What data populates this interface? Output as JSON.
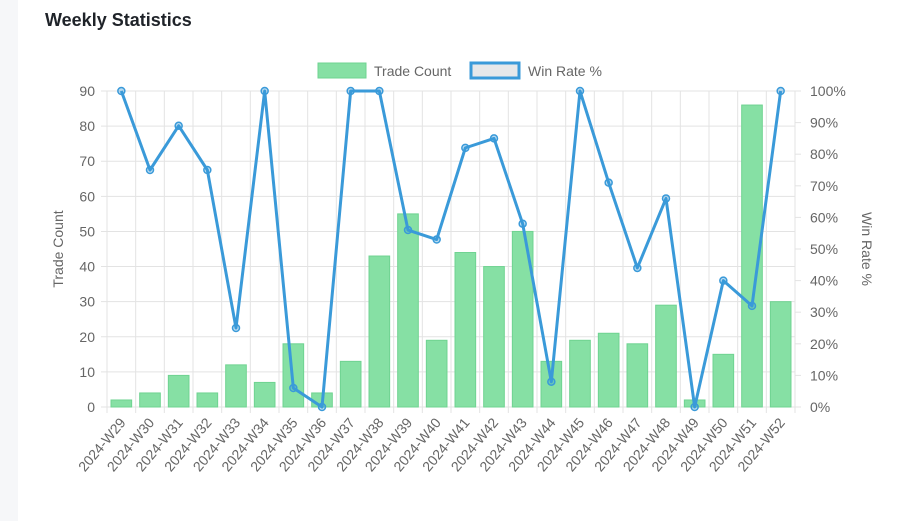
{
  "page": {
    "title": "Weekly Statistics"
  },
  "colors": {
    "bar_fill": "#86e0a4",
    "bar_stroke": "#6fd391",
    "line": "#3a9ad9",
    "grid": "#e3e3e3",
    "text": "#666666"
  },
  "chart_data": {
    "type": "bar",
    "categories": [
      "2024-W29",
      "2024-W30",
      "2024-W31",
      "2024-W32",
      "2024-W33",
      "2024-W34",
      "2024-W35",
      "2024-W36",
      "2024-W37",
      "2024-W38",
      "2024-W39",
      "2024-W40",
      "2024-W41",
      "2024-W42",
      "2024-W43",
      "2024-W44",
      "2024-W45",
      "2024-W46",
      "2024-W47",
      "2024-W48",
      "2024-W49",
      "2024-W50",
      "2024-W51",
      "2024-W52"
    ],
    "series": [
      {
        "name": "Trade Count",
        "type": "bar",
        "axis": "left",
        "values": [
          2,
          4,
          9,
          4,
          12,
          7,
          18,
          4,
          13,
          43,
          55,
          19,
          44,
          40,
          50,
          13,
          19,
          21,
          18,
          29,
          2,
          15,
          86,
          30
        ]
      },
      {
        "name": "Win Rate %",
        "type": "line",
        "axis": "right",
        "values": [
          100,
          75,
          89,
          75,
          25,
          100,
          6,
          0,
          100,
          100,
          56,
          53,
          82,
          85,
          58,
          8,
          100,
          71,
          44,
          66,
          0,
          40,
          32,
          100
        ]
      }
    ],
    "ylabel": "Trade Count",
    "ylim": [
      0,
      90
    ],
    "yticks": [
      "0",
      "10",
      "20",
      "30",
      "40",
      "50",
      "60",
      "70",
      "80",
      "90"
    ],
    "y2label": "Win Rate %",
    "y2lim": [
      0,
      100
    ],
    "y2ticks": [
      "0%",
      "10%",
      "20%",
      "30%",
      "40%",
      "50%",
      "60%",
      "70%",
      "80%",
      "90%",
      "100%"
    ],
    "legend_position": "top",
    "grid": true
  }
}
